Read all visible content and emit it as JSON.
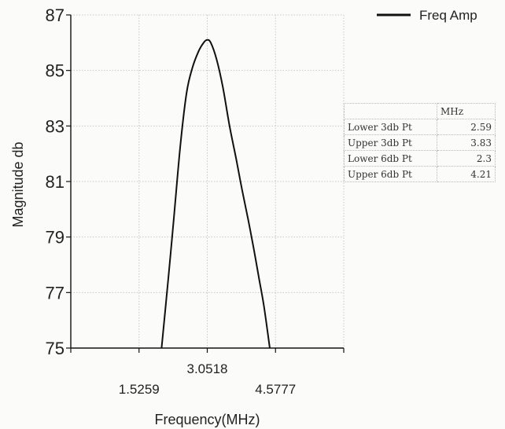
{
  "chart_data": {
    "type": "line",
    "xlabel": "Frequency(MHz)",
    "ylabel": "Magnitude db",
    "ylim": [
      75,
      87
    ],
    "yticks": [
      75,
      77,
      79,
      81,
      83,
      85,
      87
    ],
    "xlim": [
      0,
      6.1036
    ],
    "xticks": [
      1.5259,
      3.0518,
      4.5777
    ],
    "xtick_labels": [
      "1.5259",
      "3.0518",
      "4.5777"
    ],
    "grid": true,
    "legend_position": "top-right",
    "series": [
      {
        "name": "Freq Amp",
        "color": "#111111",
        "x": [
          2.03,
          2.18,
          2.3,
          2.45,
          2.59,
          2.72,
          2.86,
          2.97,
          3.05,
          3.13,
          3.26,
          3.4,
          3.55,
          3.7,
          3.83,
          3.97,
          4.1,
          4.21,
          4.32,
          4.45
        ],
        "y": [
          75.0,
          77.5,
          79.6,
          82.3,
          84.2,
          85.1,
          85.7,
          86.0,
          86.1,
          86.0,
          85.4,
          84.4,
          83.0,
          81.8,
          80.7,
          79.6,
          78.5,
          77.5,
          76.5,
          75.0
        ]
      }
    ]
  },
  "table": {
    "unit_header": "MHz",
    "rows": [
      {
        "label": "Lower 3db Pt",
        "value": "2.59"
      },
      {
        "label": "Upper 3db Pt",
        "value": "3.83"
      },
      {
        "label": "Lower 6db Pt",
        "value": "2.3"
      },
      {
        "label": "Upper 6db Pt",
        "value": "4.21"
      }
    ]
  }
}
